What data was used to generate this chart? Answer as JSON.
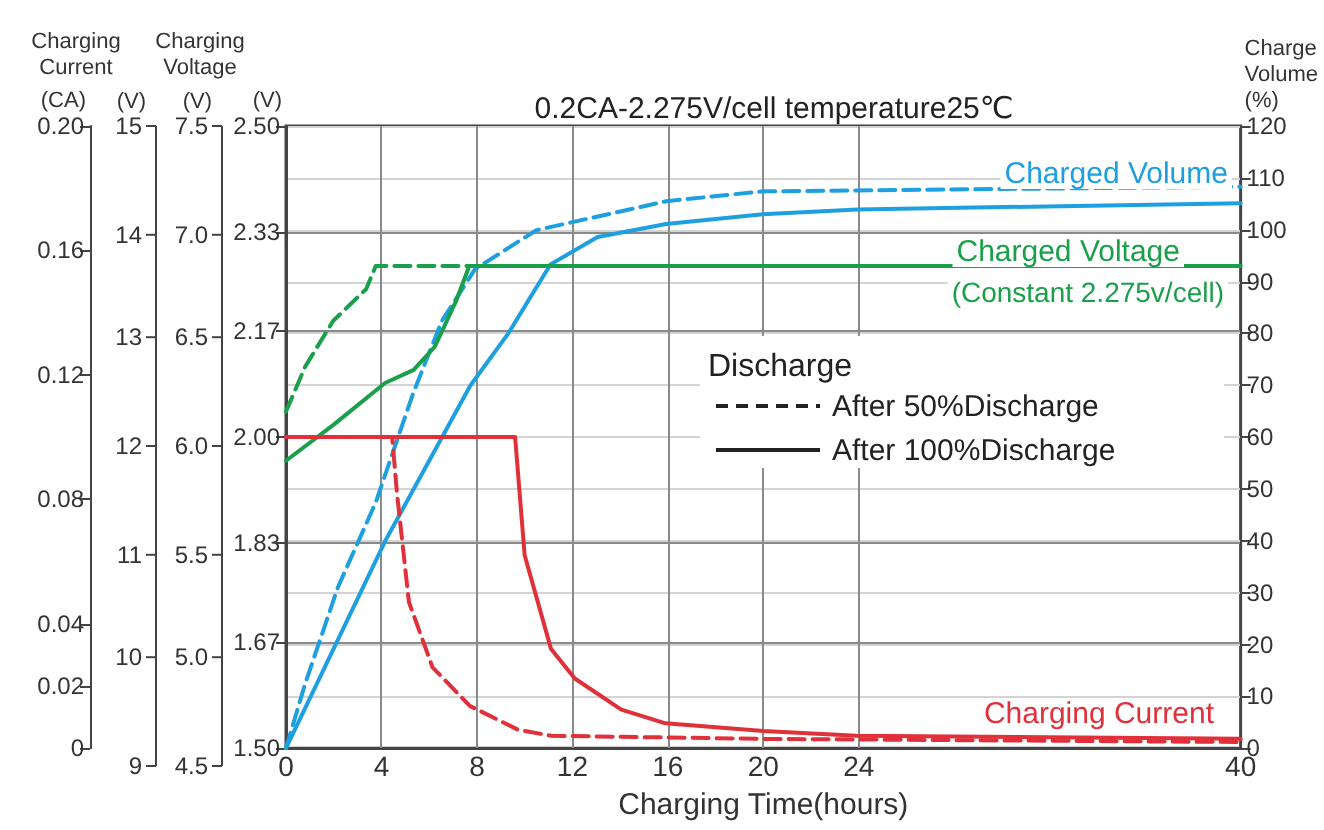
{
  "chart_data": {
    "type": "line",
    "title": "0.2CA-2.275V/cell temperature25℃",
    "xlabel": "Charging Time(hours)",
    "ylabel": "(V)",
    "y3label": "(CA)",
    "y2label": "Charge Volume (%)",
    "legend_title": "Discharge",
    "legend": "right",
    "grid": true,
    "xlim": [
      0,
      40
    ],
    "xticks": [
      0,
      4,
      8,
      12,
      16,
      20,
      24,
      40
    ],
    "ylim": [
      1.5,
      2.5
    ],
    "yticks": [
      {
        "value": 1.5,
        "label": "1.50"
      },
      1.67,
      1.83,
      {
        "value": 2,
        "label": "2.00"
      },
      2.17,
      2.33,
      {
        "value": 2.5,
        "label": "2.50"
      }
    ],
    "y3lim": [
      0,
      0.2
    ],
    "y3ticks": [
      0,
      0.02,
      0.04,
      0.08,
      0.12,
      0.16,
      {
        "value": 0.2,
        "label": "0.20"
      }
    ],
    "y2lim": [
      0,
      120
    ],
    "y2ticks": [
      0,
      10,
      20,
      30,
      40,
      50,
      60,
      70,
      80,
      90,
      100,
      110,
      120
    ],
    "annotations": [
      "Charging Current",
      "Charging Voltage",
      "(V)",
      "(V)",
      "15",
      "14",
      "13",
      "12",
      "11",
      "10",
      "9",
      "7.5",
      "7.0",
      "6.5",
      "6.0",
      "5.5",
      "5.0",
      "4.5",
      "(Constant 2.275v/cell)",
      "After 50%Discharge",
      "After 100%Discharge"
    ],
    "series": [
      {
        "name": "Charged Volume",
        "axis": "y2",
        "color": "#1ea0e0",
        "line_style": "solid",
        "x": [
          0,
          4.15,
          7.72,
          9.3,
          11.08,
          13.06,
          15.93,
          19.98,
          23.94,
          40
        ],
        "values": [
          0,
          39.9,
          69.9,
          79.9,
          93.3,
          98.6,
          101.1,
          103,
          103.9,
          105.1
        ]
      },
      {
        "axis": "y2",
        "color": "#1ea0e0",
        "line_style": "dashed",
        "x": [
          0,
          0.8,
          2.18,
          3.76,
          5.34,
          6.53,
          7.92,
          10.49,
          15.93,
          19.98,
          40
        ],
        "values": [
          0,
          12.4,
          31.1,
          47.4,
          68.6,
          82.4,
          92.4,
          99.9,
          105.5,
          107.4,
          108.3
        ]
      },
      {
        "name": "Charged Voltage",
        "color": "#1aa04a",
        "line_style": "solid",
        "x": [
          0,
          2,
          4.15,
          5.35,
          6.23,
          7.12,
          7.68,
          40
        ],
        "values": [
          1.962,
          2.02,
          2.087,
          2.108,
          2.145,
          2.218,
          2.275,
          2.275
        ]
      },
      {
        "color": "#1aa04a",
        "line_style": "dashed",
        "x": [
          0,
          0.8,
          1.98,
          3.36,
          3.76,
          7.68
        ],
        "values": [
          2.041,
          2.113,
          2.187,
          2.238,
          2.275,
          2.275
        ]
      },
      {
        "name": "Charging Current",
        "axis": "y3",
        "color": "#e0303a",
        "line_style": "solid",
        "x": [
          0,
          9.6,
          10,
          11.1,
          12.1,
          14.05,
          15.9,
          20,
          23.9,
          40
        ],
        "values": [
          0.1,
          0.1,
          0.062,
          0.032,
          0.0224,
          0.0124,
          0.008,
          0.0055,
          0.004,
          0.003
        ]
      },
      {
        "axis": "y3",
        "color": "#e0303a",
        "line_style": "dashed",
        "x": [
          0,
          4.45,
          4.65,
          5.15,
          6.14,
          7.7,
          9.7,
          11.1,
          20,
          40
        ],
        "values": [
          0.1,
          0.1,
          0.082,
          0.047,
          0.026,
          0.0136,
          0.006,
          0.004,
          0.003,
          0.002
        ]
      }
    ]
  }
}
